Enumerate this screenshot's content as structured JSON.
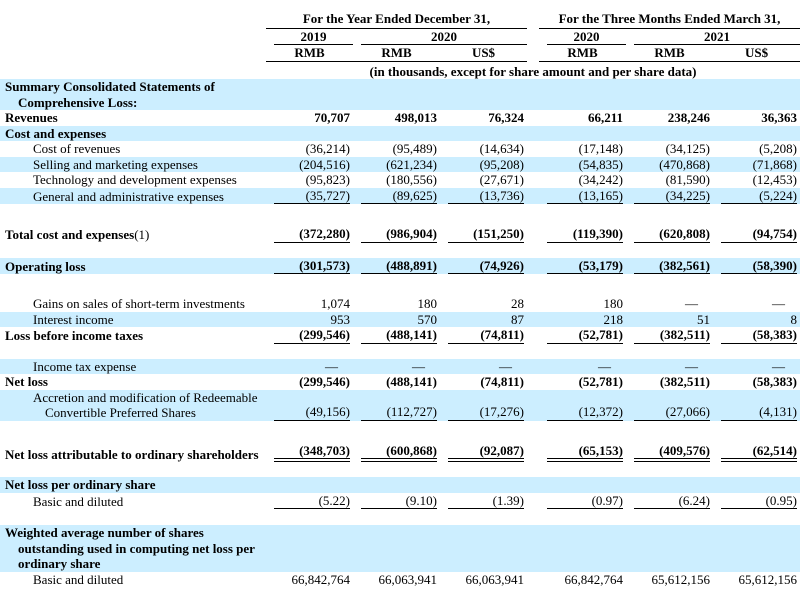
{
  "colors": {
    "band": "#cceeff",
    "text": "#000000",
    "rule": "#000000"
  },
  "header": {
    "group1": "For the Year Ended December 31,",
    "group2": "For the Three Months Ended March 31,",
    "years": [
      "2019",
      "2020",
      "2020",
      "2021"
    ],
    "currencies": [
      "RMB",
      "RMB",
      "US$",
      "RMB",
      "RMB",
      "US$"
    ],
    "note": "(in thousands, except for share amount and per share data)"
  },
  "table": {
    "rows": [
      {
        "lines": [
          {
            "t": "Summary Consolidated Statements of",
            "i": 0
          },
          {
            "t": "Comprehensive Loss:",
            "i": 1
          }
        ],
        "bold": true,
        "band": true
      },
      {
        "lines": [
          {
            "t": "Revenues",
            "i": 0
          }
        ],
        "bold": true,
        "values": [
          "70,707",
          "498,013",
          "76,324",
          "66,211",
          "238,246",
          "36,363"
        ]
      },
      {
        "lines": [
          {
            "t": "Cost and expenses",
            "i": 0
          }
        ],
        "bold": true,
        "band": true
      },
      {
        "lines": [
          {
            "t": "Cost of revenues",
            "i": 2
          }
        ],
        "values": [
          "(36,214)",
          "(95,489)",
          "(14,634)",
          "(17,148)",
          "(34,125)",
          "(5,208)"
        ]
      },
      {
        "lines": [
          {
            "t": "Selling and marketing expenses",
            "i": 2
          }
        ],
        "band": true,
        "values": [
          "(204,516)",
          "(621,234)",
          "(95,208)",
          "(54,835)",
          "(470,868)",
          "(71,868)"
        ]
      },
      {
        "lines": [
          {
            "t": "Technology and development expenses",
            "i": 2
          }
        ],
        "values": [
          "(95,823)",
          "(180,556)",
          "(27,671)",
          "(34,242)",
          "(81,590)",
          "(12,453)"
        ]
      },
      {
        "lines": [
          {
            "t": "General and administrative expenses",
            "i": 2
          }
        ],
        "band": true,
        "rule": "single",
        "gap_after": 22,
        "values": [
          "(35,727)",
          "(89,625)",
          "(13,736)",
          "(13,165)",
          "(34,225)",
          "(5,224)"
        ]
      },
      {
        "lines": [
          {
            "t": "Total cost and expenses",
            "i": 0,
            "suffix": "(1)"
          }
        ],
        "bold": true,
        "rule": "single",
        "gap_after": 15,
        "values": [
          "(372,280)",
          "(986,904)",
          "(151,250)",
          "(119,390)",
          "(620,808)",
          "(94,754)"
        ]
      },
      {
        "lines": [
          {
            "t": "Operating loss",
            "i": 0
          }
        ],
        "bold": true,
        "band": true,
        "rule": "single",
        "gap_after": 22,
        "values": [
          "(301,573)",
          "(488,891)",
          "(74,926)",
          "(53,179)",
          "(382,561)",
          "(58,390)"
        ]
      },
      {
        "lines": [
          {
            "t": "Gains on sales of short-term investments",
            "i": 2
          }
        ],
        "values": [
          "1,074",
          "180",
          "28",
          "180",
          "—",
          "—"
        ]
      },
      {
        "lines": [
          {
            "t": "Interest income",
            "i": 2
          }
        ],
        "band": true,
        "values": [
          "953",
          "570",
          "87",
          "218",
          "51",
          "8"
        ]
      },
      {
        "lines": [
          {
            "t": "Loss before income taxes",
            "i": 0
          }
        ],
        "bold": true,
        "rule": "single",
        "gap_after": 15,
        "values": [
          "(299,546)",
          "(488,141)",
          "(74,811)",
          "(52,781)",
          "(382,511)",
          "(58,383)"
        ]
      },
      {
        "lines": [
          {
            "t": "Income tax expense",
            "i": 2
          }
        ],
        "band": true,
        "values": [
          "—",
          "—",
          "—",
          "—",
          "—",
          "—"
        ]
      },
      {
        "lines": [
          {
            "t": "Net loss",
            "i": 0
          }
        ],
        "bold": true,
        "values": [
          "(299,546)",
          "(488,141)",
          "(74,811)",
          "(52,781)",
          "(382,511)",
          "(58,383)"
        ]
      },
      {
        "lines": [
          {
            "t": "Accretion and modification of Redeemable",
            "i": 2
          },
          {
            "t": "Convertible Preferred Shares",
            "i": 3
          }
        ],
        "band": true,
        "rule": "single",
        "gap_after": 22,
        "values": [
          "(49,156)",
          "(112,727)",
          "(17,276)",
          "(12,372)",
          "(27,066)",
          "(4,131)"
        ]
      },
      {
        "lines": [
          {
            "t": "Net loss attributable to ordinary shareholders",
            "i": 0
          }
        ],
        "bold": true,
        "rule": "double",
        "gap_after": 15,
        "values": [
          "(348,703)",
          "(600,868)",
          "(92,087)",
          "(65,153)",
          "(409,576)",
          "(62,514)"
        ]
      },
      {
        "lines": [
          {
            "t": "Net loss per ordinary share",
            "i": 0
          }
        ],
        "bold": true,
        "band": true
      },
      {
        "lines": [
          {
            "t": "Basic and diluted",
            "i": 2
          }
        ],
        "rule": "single",
        "gap_after": 16,
        "values": [
          "(5.22)",
          "(9.10)",
          "(1.39)",
          "(0.97)",
          "(6.24)",
          "(0.95)"
        ]
      },
      {
        "lines": [
          {
            "t": "Weighted average number of shares",
            "i": 0
          },
          {
            "t": "outstanding used in computing net loss per",
            "i": 1
          },
          {
            "t": "ordinary share",
            "i": 1
          }
        ],
        "bold": true,
        "band": true
      },
      {
        "lines": [
          {
            "t": "Basic and diluted",
            "i": 2
          }
        ],
        "values": [
          "66,842,764",
          "66,063,941",
          "66,063,941",
          "66,842,764",
          "65,612,156",
          "65,612,156"
        ]
      }
    ]
  }
}
